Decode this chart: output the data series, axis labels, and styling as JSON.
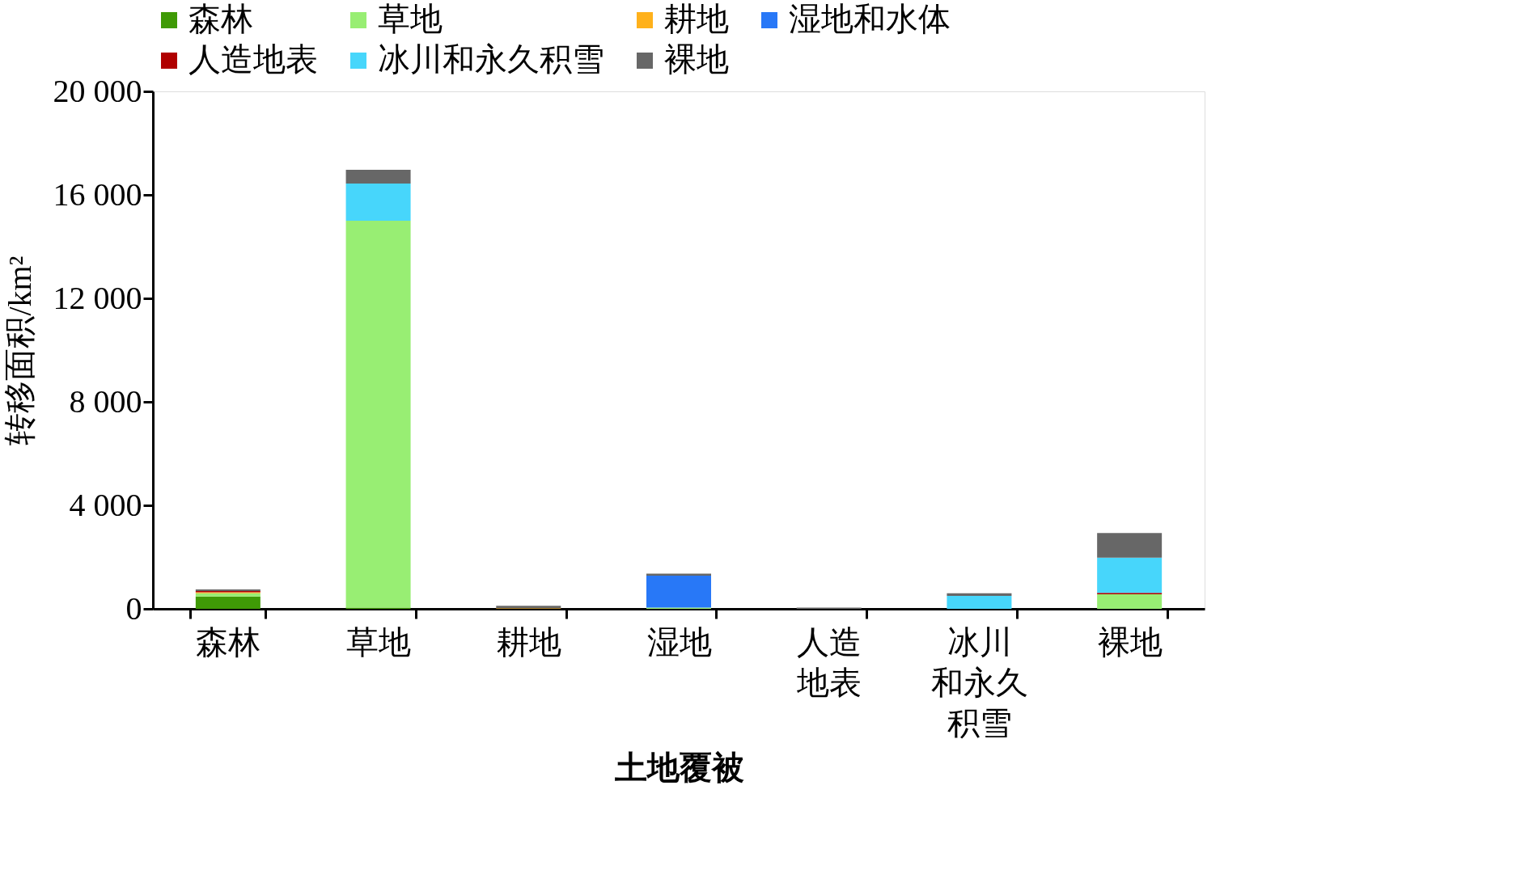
{
  "chart_data": {
    "type": "bar",
    "stacked": true,
    "xlabel": "土地覆被",
    "ylabel": "转移面积/km²",
    "categories": [
      "森林",
      "草地",
      "耕地",
      "湿地",
      "人造地表",
      "冰川和永久积雪",
      "裸地"
    ],
    "series": [
      {
        "name": "森林",
        "color": "#3f9a06",
        "values": [
          480,
          50,
          0,
          0,
          0,
          0,
          0
        ]
      },
      {
        "name": "草地",
        "color": "#98ee73",
        "values": [
          120,
          14950,
          0,
          50,
          0,
          0,
          560
        ]
      },
      {
        "name": "耕地",
        "color": "#ffb11b",
        "values": [
          40,
          0,
          20,
          0,
          0,
          0,
          0
        ]
      },
      {
        "name": "湿地和水体",
        "color": "#2878f7",
        "values": [
          0,
          0,
          0,
          1230,
          0,
          0,
          0
        ]
      },
      {
        "name": "人造地表",
        "color": "#b00000",
        "values": [
          50,
          0,
          0,
          0,
          0,
          0,
          60
        ]
      },
      {
        "name": "冰川和永久积雪",
        "color": "#47d6fb",
        "values": [
          0,
          1440,
          0,
          0,
          0,
          500,
          1360
        ]
      },
      {
        "name": "裸地",
        "color": "#676767",
        "values": [
          60,
          530,
          100,
          80,
          50,
          100,
          950
        ]
      }
    ],
    "ylim": [
      0,
      20000
    ],
    "yticks": [
      0,
      {
        "value": 4000,
        "label": "4 000"
      },
      {
        "value": 8000,
        "label": "8 000"
      },
      {
        "value": 12000,
        "label": "12 000"
      },
      {
        "value": 16000,
        "label": "16 000"
      },
      {
        "value": 20000,
        "label": "20 000"
      }
    ],
    "grid": false,
    "legend": "top"
  }
}
